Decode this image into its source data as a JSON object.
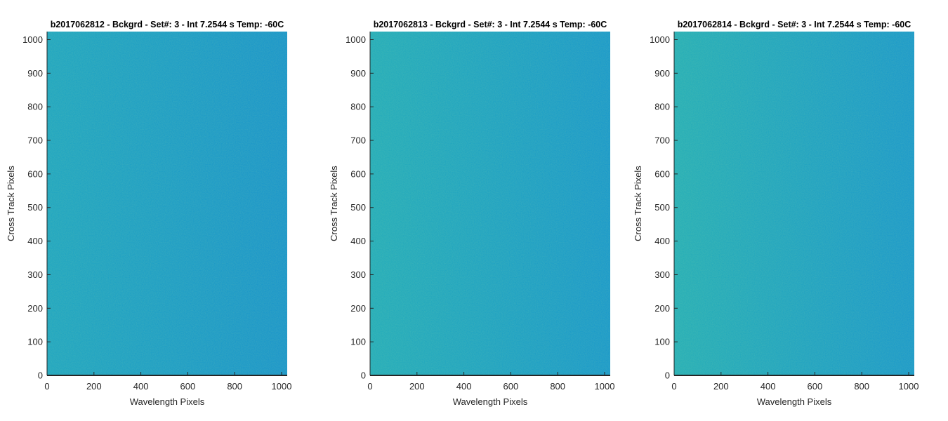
{
  "chart_data": [
    {
      "type": "heatmap",
      "title": "b2017062812 - Bckgrd - Set#: 3 - Int 7.2544 s Temp: -60C",
      "xlabel": "Wavelength Pixels",
      "ylabel": "Cross Track Pixels",
      "xlim": [
        0,
        1024
      ],
      "ylim": [
        0,
        1024
      ],
      "xticks": [
        0,
        200,
        400,
        600,
        800,
        1000
      ],
      "yticks": [
        0,
        100,
        200,
        300,
        400,
        500,
        600,
        700,
        800,
        900,
        1000
      ],
      "colors": {
        "left": "#1aa3c2",
        "right": "#1492cc"
      },
      "pattern": "near-uniform noise, slightly greener at low wavelength, bluer at high wavelength",
      "grid": false
    },
    {
      "type": "heatmap",
      "title": "b2017062813 - Bckgrd - Set#: 3 - Int 7.2544 s Temp: -60C",
      "xlabel": "Wavelength Pixels",
      "ylabel": "Cross Track Pixels",
      "xlim": [
        0,
        1024
      ],
      "ylim": [
        0,
        1024
      ],
      "xticks": [
        0,
        200,
        400,
        600,
        800,
        1000
      ],
      "yticks": [
        0,
        100,
        200,
        300,
        400,
        500,
        600,
        700,
        800,
        900,
        1000
      ],
      "colors": {
        "left": "#1eaabb",
        "right": "#1496cc"
      },
      "pattern": "near-uniform noise, slightly greener at low wavelength, bluer at high wavelength",
      "grid": false
    },
    {
      "type": "heatmap",
      "title": "b2017062814 - Bckgrd - Set#: 3 - Int 7.2544 s Temp: -60C",
      "xlabel": "Wavelength Pixels",
      "ylabel": "Cross Track Pixels",
      "xlim": [
        0,
        1024
      ],
      "ylim": [
        0,
        1024
      ],
      "xticks": [
        0,
        200,
        400,
        600,
        800,
        1000
      ],
      "yticks": [
        0,
        100,
        200,
        300,
        400,
        500,
        600,
        700,
        800,
        900,
        1000
      ],
      "colors": {
        "left": "#20acb8",
        "right": "#1596cc"
      },
      "pattern": "near-uniform noise, slightly greener at low wavelength, bluer at high wavelength",
      "grid": false
    }
  ]
}
